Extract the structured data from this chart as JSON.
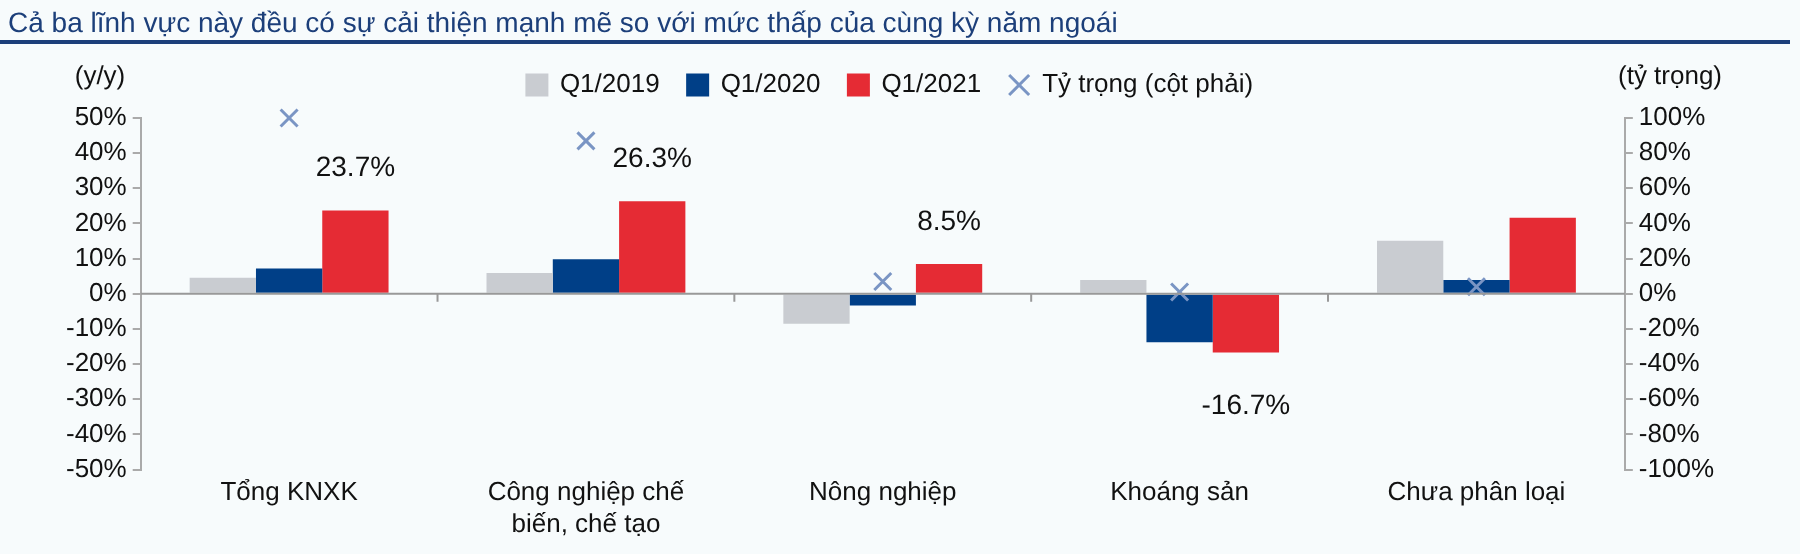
{
  "chart_data": {
    "type": "bar",
    "title": "Cả ba lĩnh vực này đều có sự cải thiện mạnh mẽ so với mức thấp của cùng kỳ năm ngoái",
    "ylabel": "(y/y)",
    "y2label": "(tỷ trọng)",
    "categories": [
      "Tổng KNXK",
      "Công nghiệp chế biến, chế tạo",
      "Nông nghiệp",
      "Khoáng sản",
      "Chưa phân loại"
    ],
    "series": [
      {
        "name": "Q1/2019",
        "color": "#c9ccd1",
        "values": [
          4.6,
          5.9,
          -8.5,
          3.9,
          15.1
        ]
      },
      {
        "name": "Q1/2020",
        "color": "#003f87",
        "values": [
          7.2,
          9.8,
          -3.3,
          -13.8,
          3.9
        ]
      },
      {
        "name": "Q1/2021",
        "color": "#e52b34",
        "values": [
          23.7,
          26.3,
          8.5,
          -16.7,
          21.6
        ],
        "value_labels": [
          "23.7%",
          "26.3%",
          "8.5%",
          "-16.7%",
          null
        ]
      },
      {
        "name": "Tỷ trọng (cột phải)",
        "type": "scatter",
        "axis": "y2",
        "marker": "cross",
        "color": "#7a95c4",
        "values": [
          100,
          87,
          7,
          1,
          4
        ]
      }
    ],
    "ylim": [
      -50,
      50
    ],
    "yticks": [
      {
        "value": -50,
        "label": "-50%"
      },
      {
        "value": -40,
        "label": "-40%"
      },
      {
        "value": -30,
        "label": "-30%"
      },
      {
        "value": -20,
        "label": "-20%"
      },
      {
        "value": -10,
        "label": "-10%"
      },
      {
        "value": 0,
        "label": "0%"
      },
      {
        "value": 10,
        "label": "10%"
      },
      {
        "value": 20,
        "label": "20%"
      },
      {
        "value": 30,
        "label": "30%"
      },
      {
        "value": 40,
        "label": "40%"
      },
      {
        "value": 50,
        "label": "50%"
      }
    ],
    "y2lim": [
      -100,
      100
    ],
    "y2ticks": [
      {
        "value": -100,
        "label": "-100%"
      },
      {
        "value": -80,
        "label": "-80%"
      },
      {
        "value": -60,
        "label": "-60%"
      },
      {
        "value": -40,
        "label": "-40%"
      },
      {
        "value": -20,
        "label": "-20%"
      },
      {
        "value": 0,
        "label": "0%"
      },
      {
        "value": 20,
        "label": "20%"
      },
      {
        "value": 40,
        "label": "40%"
      },
      {
        "value": 60,
        "label": "60%"
      },
      {
        "value": 80,
        "label": "80%"
      },
      {
        "value": 100,
        "label": "100%"
      }
    ],
    "ref_lines": [
      {
        "axis": "y",
        "value": 0,
        "color": "#999999"
      }
    ],
    "grid": false,
    "legend": "top"
  }
}
